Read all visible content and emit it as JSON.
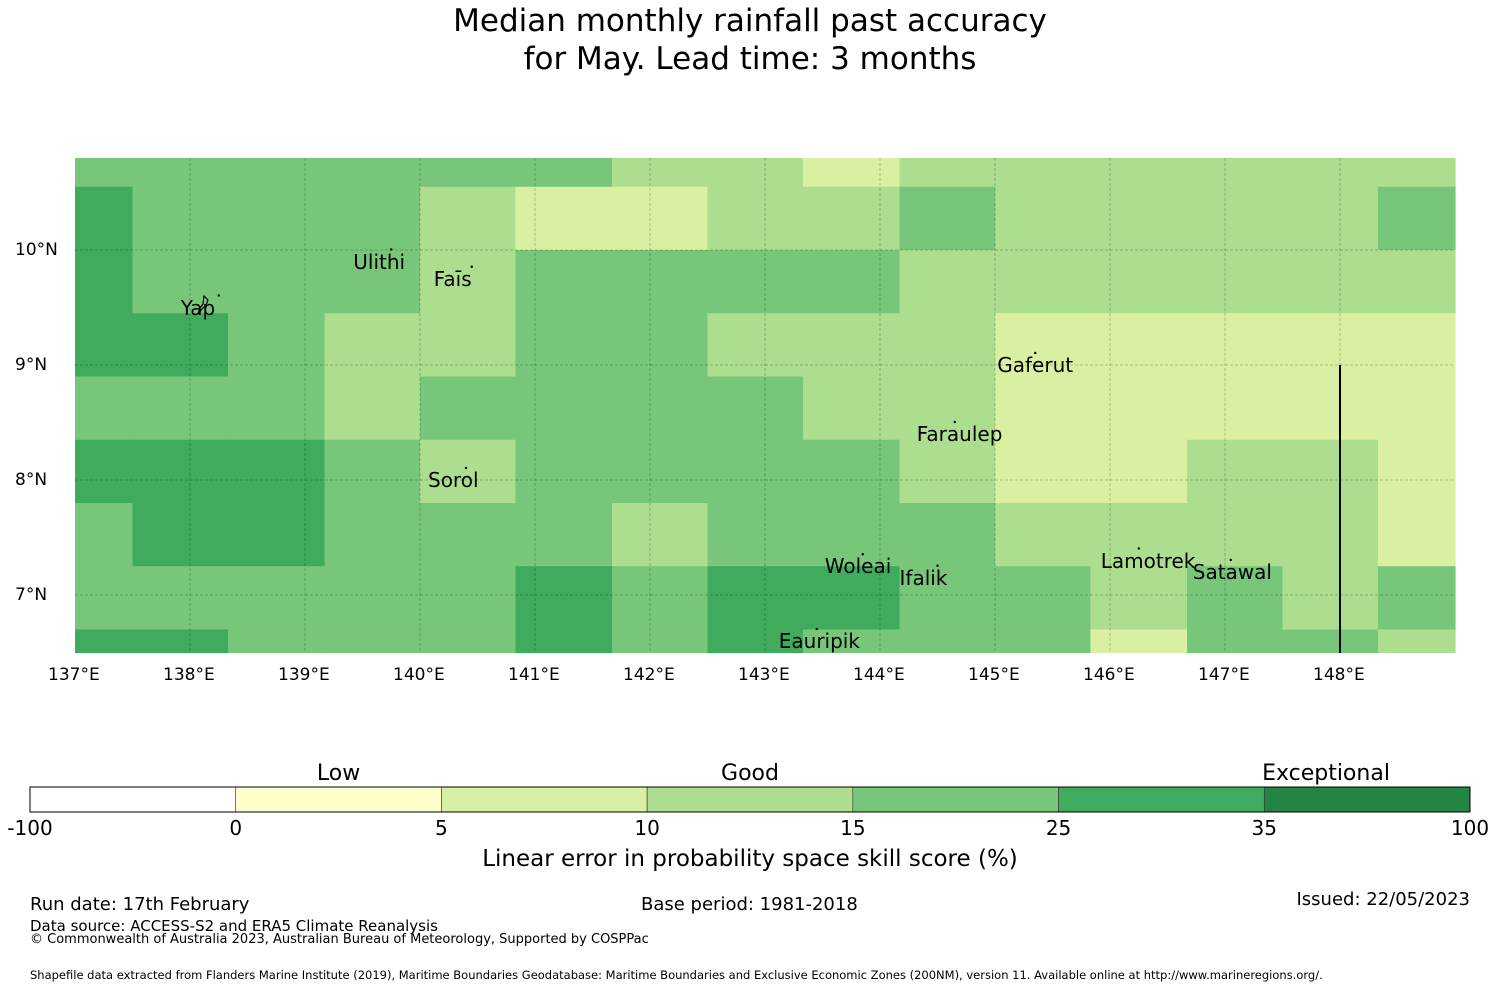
{
  "title": {
    "line1": "Median monthly rainfall past accuracy",
    "line2": "for May. Lead time: 3 months"
  },
  "map": {
    "lon_range": [
      137,
      149
    ],
    "lat_range": [
      6.5,
      10.8
    ],
    "x_ticks": [
      "137°E",
      "138°E",
      "139°E",
      "140°E",
      "141°E",
      "142°E",
      "143°E",
      "144°E",
      "145°E",
      "146°E",
      "147°E",
      "148°E"
    ],
    "y_ticks": [
      "10°N",
      "9°N",
      "8°N",
      "7°N"
    ],
    "boundary_line_lon": 148,
    "places": [
      {
        "name": "Ulithi",
        "lon": 139.75,
        "lat": 9.9
      },
      {
        "name": "Faīs",
        "lon": 140.45,
        "lat": 9.75
      },
      {
        "name": "Yap",
        "lon": 138.25,
        "lat": 9.5
      },
      {
        "name": "Gaferut",
        "lon": 145.35,
        "lat": 9.0
      },
      {
        "name": "Faraulep",
        "lon": 144.65,
        "lat": 8.4
      },
      {
        "name": "Sorol",
        "lon": 140.4,
        "lat": 8.0
      },
      {
        "name": "Woleai",
        "lon": 143.85,
        "lat": 7.25
      },
      {
        "name": "Ifalik",
        "lon": 144.5,
        "lat": 7.15
      },
      {
        "name": "Lamotrek",
        "lon": 146.25,
        "lat": 7.3
      },
      {
        "name": "Satawal",
        "lon": 147.05,
        "lat": 7.2
      },
      {
        "name": "Eauripik",
        "lon": 143.45,
        "lat": 6.6
      }
    ],
    "grid": {
      "col_edges_lon": [
        137,
        137.5,
        138.33,
        139.17,
        140,
        140.83,
        141.67,
        142.5,
        143.33,
        144.17,
        145,
        145.83,
        146.67,
        147.5,
        148.33,
        149
      ],
      "row_edges_lat": [
        10.8,
        10.55,
        10.0,
        9.45,
        8.9,
        8.35,
        7.8,
        7.25,
        6.7,
        6.5
      ],
      "class_grid": [
        [
          4,
          4,
          4,
          4,
          4,
          4,
          3,
          3,
          2,
          3,
          3,
          3,
          3,
          3,
          3
        ],
        [
          5,
          4,
          4,
          4,
          3,
          2,
          2,
          3,
          3,
          4,
          3,
          3,
          3,
          3,
          4
        ],
        [
          5,
          4,
          4,
          4,
          3,
          4,
          4,
          4,
          4,
          3,
          3,
          3,
          3,
          3,
          3
        ],
        [
          5,
          5,
          4,
          3,
          3,
          4,
          4,
          3,
          3,
          3,
          2,
          2,
          2,
          2,
          2
        ],
        [
          4,
          4,
          4,
          3,
          4,
          4,
          4,
          4,
          3,
          3,
          2,
          2,
          2,
          2,
          2
        ],
        [
          5,
          5,
          5,
          4,
          3,
          4,
          4,
          4,
          4,
          3,
          2,
          2,
          3,
          3,
          2
        ],
        [
          4,
          5,
          5,
          4,
          4,
          4,
          3,
          4,
          4,
          4,
          3,
          3,
          3,
          3,
          2
        ],
        [
          4,
          4,
          4,
          4,
          4,
          5,
          4,
          5,
          5,
          4,
          4,
          3,
          4,
          3,
          4
        ],
        [
          5,
          5,
          4,
          4,
          4,
          5,
          4,
          5,
          4,
          4,
          4,
          2,
          4,
          4,
          3
        ]
      ]
    }
  },
  "colorbar": {
    "categories": [
      {
        "label": "Low",
        "at_tick": 1.5
      },
      {
        "label": "Good",
        "at_tick": 3.5
      },
      {
        "label": "Exceptional",
        "at_tick": 6.3
      }
    ],
    "ticks": [
      "-100",
      "0",
      "5",
      "10",
      "15",
      "25",
      "35",
      "100"
    ],
    "colors": [
      "#ffffff",
      "#ffffcc",
      "#d9f0a3",
      "#addd8e",
      "#78c679",
      "#41ab5d",
      "#238443"
    ],
    "label": "Linear error in probability space skill score (%)"
  },
  "footer": {
    "run_date": "Run date: 17th February",
    "base_period": "Base period: 1981-2018",
    "issued": "Issued: 22/05/2023",
    "data_source": "Data source: ACCESS-S2 and ERA5 Climate Reanalysis",
    "copyright": "© Commonwealth of Australia 2023, Australian Bureau of Meteorology, Supported by COSPPac",
    "shapefile": "Shapefile data extracted from Flanders Marine Institute (2019), Maritime Boundaries Geodatabase: Maritime Boundaries and Exclusive Economic Zones (200NM), version 11. Available online at http://www.marineregions.org/."
  }
}
